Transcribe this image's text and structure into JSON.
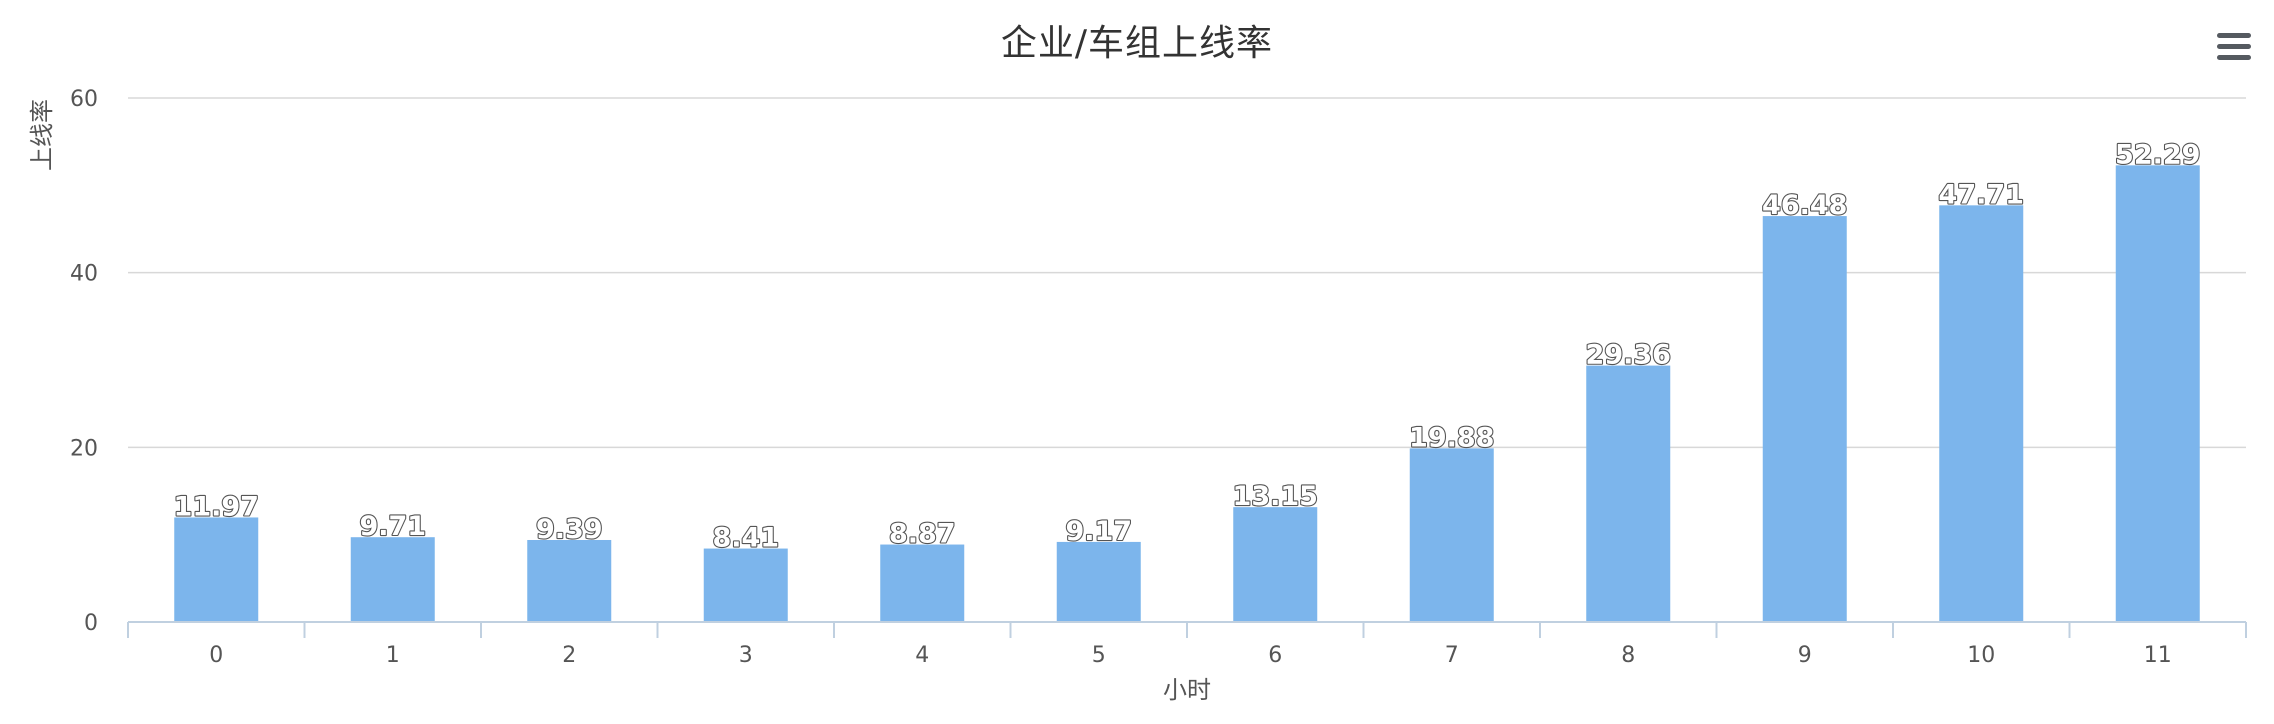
{
  "menu_icon": "hamburger-menu-icon",
  "chart_data": {
    "type": "bar",
    "title": "企业/车组上线率",
    "xlabel": "小时",
    "ylabel": "上线率",
    "categories": [
      "0",
      "1",
      "2",
      "3",
      "4",
      "5",
      "6",
      "7",
      "8",
      "9",
      "10",
      "11"
    ],
    "values": [
      11.97,
      9.71,
      9.39,
      8.41,
      8.87,
      9.17,
      13.15,
      19.88,
      29.36,
      46.48,
      47.71,
      52.29
    ],
    "ylim": [
      0,
      60
    ],
    "yticks": [
      0,
      20,
      40,
      60
    ],
    "bar_color": "#7cb5ec",
    "grid": true,
    "legend": "none"
  }
}
